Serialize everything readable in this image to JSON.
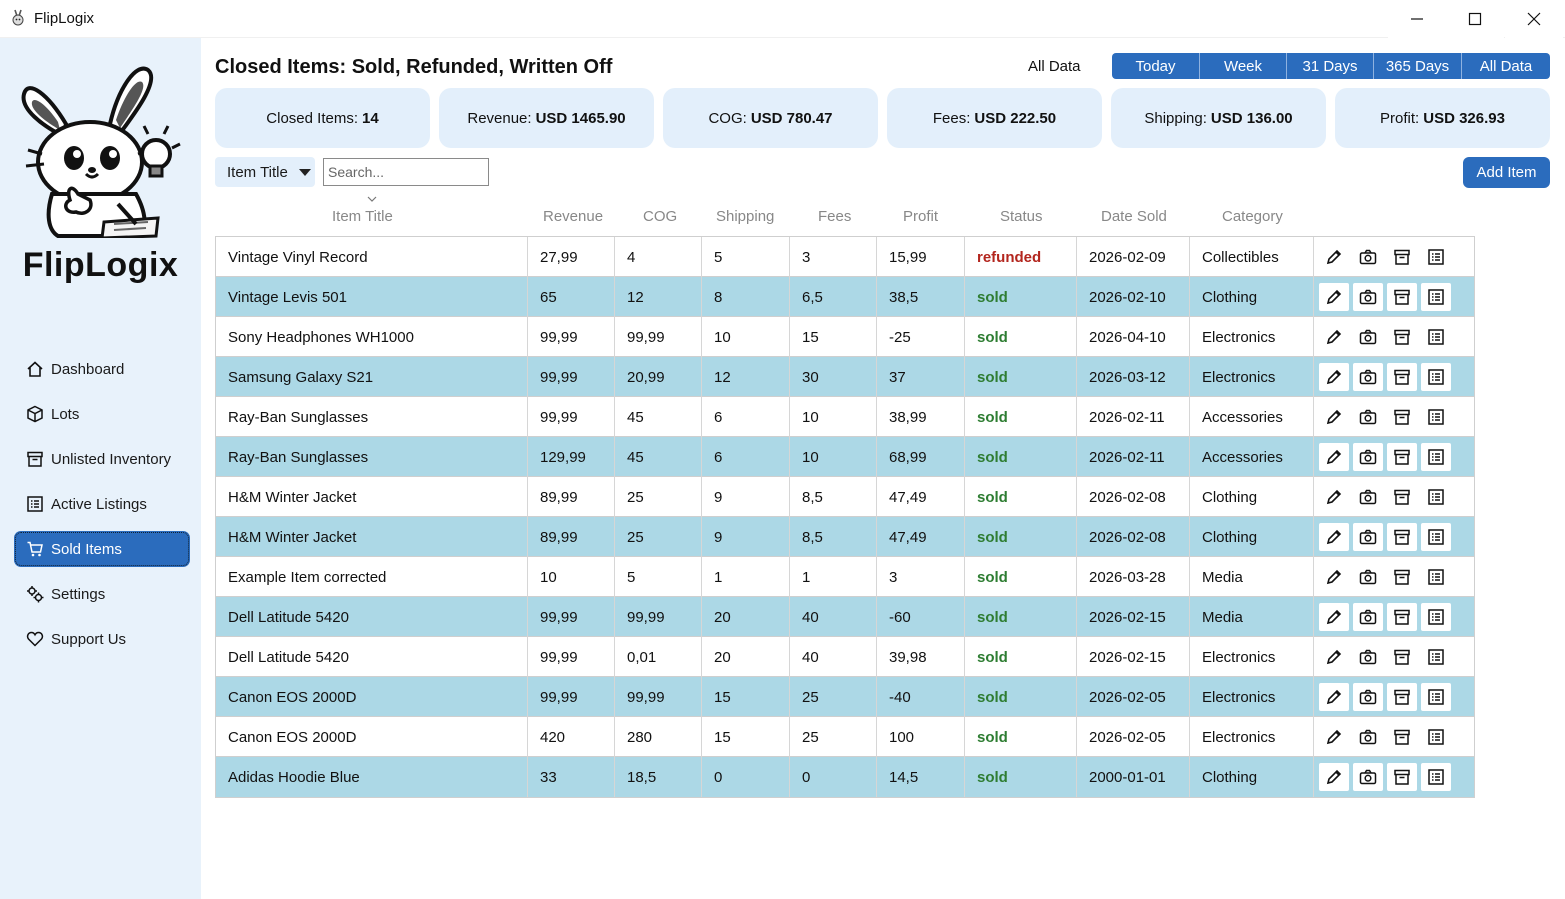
{
  "window": {
    "title": "FlipLogix"
  },
  "sidebar": {
    "brand": "FlipLogix",
    "items": [
      {
        "label": "Dashboard",
        "icon": "home-icon"
      },
      {
        "label": "Lots",
        "icon": "box-icon"
      },
      {
        "label": "Unlisted Inventory",
        "icon": "archive-icon"
      },
      {
        "label": "Active Listings",
        "icon": "list-icon"
      },
      {
        "label": "Sold Items",
        "icon": "cart-icon",
        "active": true
      },
      {
        "label": "Settings",
        "icon": "gears-icon"
      },
      {
        "label": "Support Us",
        "icon": "heart-icon"
      }
    ]
  },
  "header": {
    "title": "Closed Items: Sold, Refunded, Written Off",
    "range_label": "All Data",
    "ranges": [
      "Today",
      "Week",
      "31 Days",
      "365 Days",
      "All Data"
    ]
  },
  "stats": [
    {
      "label": "Closed Items:",
      "value": "14"
    },
    {
      "label": "Revenue:",
      "value": "USD 1465.90"
    },
    {
      "label": "COG:",
      "value": "USD 780.47"
    },
    {
      "label": "Fees:",
      "value": "USD 222.50"
    },
    {
      "label": "Shipping:",
      "value": "USD 136.00"
    },
    {
      "label": "Profit:",
      "value": "USD 326.93"
    }
  ],
  "filter": {
    "field": "Item Title",
    "search_placeholder": "Search...",
    "add_label": "Add Item"
  },
  "columns": [
    "Item Title",
    "Revenue",
    "COG",
    "Shipping",
    "Fees",
    "Profit",
    "Status",
    "Date Sold",
    "Category"
  ],
  "rows": [
    [
      "Vintage Vinyl Record",
      "27,99",
      "4",
      "5",
      "3",
      "15,99",
      "refunded",
      "2026-02-09",
      "Collectibles"
    ],
    [
      "Vintage Levis 501",
      "65",
      "12",
      "8",
      "6,5",
      "38,5",
      "sold",
      "2026-02-10",
      "Clothing"
    ],
    [
      "Sony Headphones WH1000",
      "99,99",
      "99,99",
      "10",
      "15",
      "-25",
      "sold",
      "2026-04-10",
      "Electronics"
    ],
    [
      "Samsung Galaxy S21",
      "99,99",
      "20,99",
      "12",
      "30",
      "37",
      "sold",
      "2026-03-12",
      "Electronics"
    ],
    [
      "Ray-Ban Sunglasses",
      "99,99",
      "45",
      "6",
      "10",
      "38,99",
      "sold",
      "2026-02-11",
      "Accessories"
    ],
    [
      "Ray-Ban Sunglasses",
      "129,99",
      "45",
      "6",
      "10",
      "68,99",
      "sold",
      "2026-02-11",
      "Accessories"
    ],
    [
      "H&M Winter Jacket",
      "89,99",
      "25",
      "9",
      "8,5",
      "47,49",
      "sold",
      "2026-02-08",
      "Clothing"
    ],
    [
      "H&M Winter Jacket",
      "89,99",
      "25",
      "9",
      "8,5",
      "47,49",
      "sold",
      "2026-02-08",
      "Clothing"
    ],
    [
      "Example Item corrected",
      "10",
      "5",
      "1",
      "1",
      "3",
      "sold",
      "2026-03-28",
      "Media"
    ],
    [
      "Dell Latitude 5420",
      "99,99",
      "99,99",
      "20",
      "40",
      "-60",
      "sold",
      "2026-02-15",
      "Media"
    ],
    [
      "Dell Latitude 5420",
      "99,99",
      "0,01",
      "20",
      "40",
      "39,98",
      "sold",
      "2026-02-15",
      "Electronics"
    ],
    [
      "Canon EOS 2000D",
      "99,99",
      "99,99",
      "15",
      "25",
      "-40",
      "sold",
      "2026-02-05",
      "Electronics"
    ],
    [
      "Canon EOS 2000D",
      "420",
      "280",
      "15",
      "25",
      "100",
      "sold",
      "2026-02-05",
      "Electronics"
    ],
    [
      "Adidas Hoodie Blue",
      "33",
      "18,5",
      "0",
      "0",
      "14,5",
      "sold",
      "2000-01-01",
      "Clothing"
    ]
  ],
  "row_actions": [
    "pencil-icon",
    "camera-icon",
    "archive-icon",
    "list-icon"
  ],
  "colors": {
    "accent": "#2b6cbd",
    "row_alt": "#acd8e6",
    "sold": "#2e7d32",
    "refunded": "#b3261e",
    "sidebar_bg": "#e8f2fb",
    "card_bg": "#e3effb"
  }
}
